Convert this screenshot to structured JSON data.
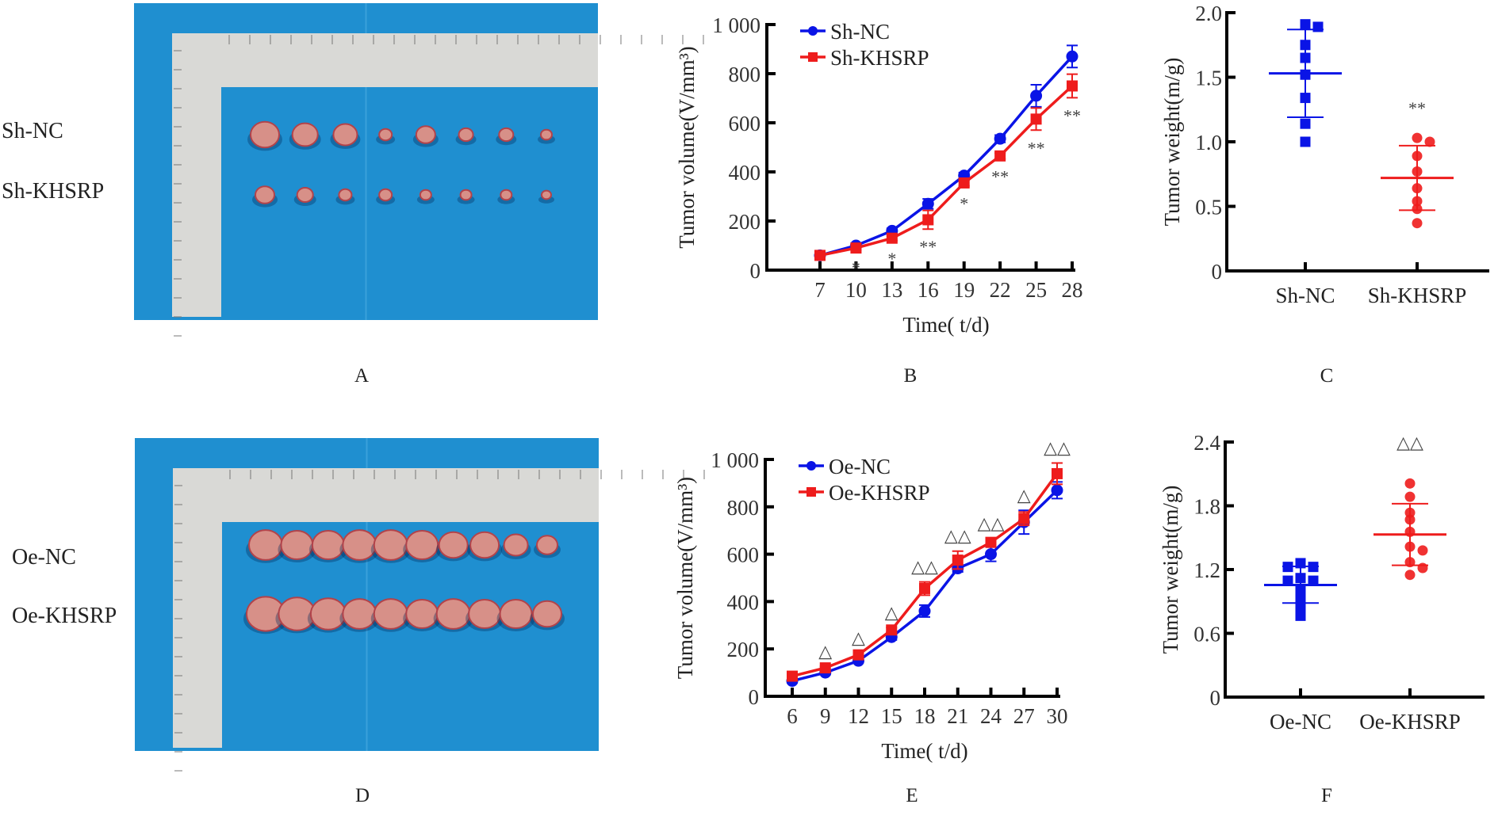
{
  "panels": {
    "A": {
      "letter": "A",
      "row_labels": [
        "Sh-NC",
        "Sh-KHSRP"
      ]
    },
    "B": {
      "letter": "B"
    },
    "C": {
      "letter": "C"
    },
    "D": {
      "letter": "D",
      "row_labels": [
        "Oe-NC",
        "Oe-KHSRP"
      ]
    },
    "E": {
      "letter": "E"
    },
    "F": {
      "letter": "F"
    }
  },
  "colors": {
    "control": "#0a14e6",
    "khsrp": "#ee1c1c",
    "photo_background": "#1f8fd0",
    "ruler": "#d9d9d6"
  },
  "chart_data": [
    {
      "id": "B",
      "type": "line",
      "xlabel": "Time( t/d)",
      "ylabel": "Tumor volume(V/mm³)",
      "x": [
        7,
        10,
        13,
        16,
        19,
        22,
        25,
        28
      ],
      "ylim": [
        0,
        1000
      ],
      "yticks": [
        0,
        200,
        400,
        600,
        800,
        1000
      ],
      "ytick_labels": [
        "0",
        "200",
        "400",
        "600",
        "800",
        "1 000"
      ],
      "legend": "top-left",
      "series": [
        {
          "name": "Sh-NC",
          "color": "#0a14e6",
          "marker": "circle",
          "values": [
            60,
            100,
            160,
            270,
            385,
            535,
            710,
            870
          ],
          "error": [
            8,
            10,
            10,
            20,
            12,
            15,
            45,
            45
          ]
        },
        {
          "name": "Sh-KHSRP",
          "color": "#ee1c1c",
          "marker": "square",
          "values": [
            60,
            90,
            130,
            205,
            355,
            465,
            615,
            750
          ],
          "error": [
            8,
            8,
            10,
            38,
            12,
            12,
            45,
            48
          ]
        }
      ],
      "annotations": [
        "",
        "*",
        "*",
        "**",
        "*",
        "**",
        "**",
        "**"
      ]
    },
    {
      "id": "C",
      "type": "scatter",
      "ylabel": "Tumor weight(m/g)",
      "categories": [
        "Sh-NC",
        "Sh-KHSRP"
      ],
      "ylim": [
        0,
        2.0
      ],
      "yticks": [
        0,
        0.5,
        1.0,
        1.5,
        2.0
      ],
      "ytick_labels": [
        "0",
        "0.5",
        "1.0",
        "1.5",
        "2.0"
      ],
      "groups": [
        {
          "name": "Sh-NC",
          "color": "#0a14e6",
          "marker": "square",
          "values": [
            1.91,
            1.89,
            1.75,
            1.65,
            1.52,
            1.34,
            1.14,
            1.0
          ],
          "mean": 1.53,
          "sd_upper": 1.87,
          "sd_lower": 1.19,
          "annotation": ""
        },
        {
          "name": "Sh-KHSRP",
          "color": "#ee1c1c",
          "marker": "circle",
          "values": [
            1.03,
            1.0,
            0.89,
            0.77,
            0.64,
            0.54,
            0.48,
            0.37
          ],
          "mean": 0.72,
          "sd_upper": 0.97,
          "sd_lower": 0.47,
          "annotation": "**"
        }
      ]
    },
    {
      "id": "E",
      "type": "line",
      "xlabel": "Time( t/d)",
      "ylabel": "Tumor volume(V/mm³)",
      "x": [
        6,
        9,
        12,
        15,
        18,
        21,
        24,
        27,
        30
      ],
      "ylim": [
        0,
        1000
      ],
      "yticks": [
        0,
        200,
        400,
        600,
        800,
        1000
      ],
      "ytick_labels": [
        "0",
        "200",
        "400",
        "600",
        "800",
        "1 000"
      ],
      "legend": "top-left",
      "series": [
        {
          "name": "Oe-NC",
          "color": "#0a14e6",
          "marker": "circle",
          "values": [
            65,
            100,
            150,
            250,
            360,
            540,
            600,
            735,
            870
          ],
          "error": [
            8,
            8,
            8,
            12,
            25,
            15,
            30,
            50,
            35
          ]
        },
        {
          "name": "Oe-KHSRP",
          "color": "#ee1c1c",
          "marker": "square",
          "values": [
            85,
            120,
            175,
            280,
            455,
            575,
            650,
            750,
            940
          ],
          "error": [
            6,
            6,
            8,
            10,
            28,
            38,
            15,
            28,
            45
          ]
        }
      ],
      "annotations": [
        "",
        "△",
        "△",
        "△",
        "△△",
        "△△",
        "△△",
        "△",
        "△△"
      ]
    },
    {
      "id": "F",
      "type": "scatter",
      "ylabel": "Tumor weight(m/g)",
      "categories": [
        "Oe-NC",
        "Oe-KHSRP"
      ],
      "ylim": [
        0,
        2.4
      ],
      "yticks": [
        0,
        0.6,
        1.2,
        1.8,
        2.4
      ],
      "ytick_labels": [
        "0",
        "0.6",
        "1.2",
        "1.8",
        "2.4"
      ],
      "groups": [
        {
          "name": "Oe-NC",
          "color": "#0a14e6",
          "marker": "square",
          "values": [
            1.26,
            1.225,
            1.225,
            1.12,
            1.095,
            1.095,
            1.01,
            0.92,
            0.83,
            0.765
          ],
          "mean": 1.055,
          "sd_upper": 1.23,
          "sd_lower": 0.885,
          "annotation": ""
        },
        {
          "name": "Oe-KHSRP",
          "color": "#ee1c1c",
          "marker": "circle",
          "values": [
            2.01,
            1.885,
            1.735,
            1.67,
            1.555,
            1.415,
            1.38,
            1.27,
            1.215,
            1.15
          ],
          "mean": 1.53,
          "sd_upper": 1.82,
          "sd_lower": 1.24,
          "annotation": "△△"
        }
      ]
    }
  ]
}
